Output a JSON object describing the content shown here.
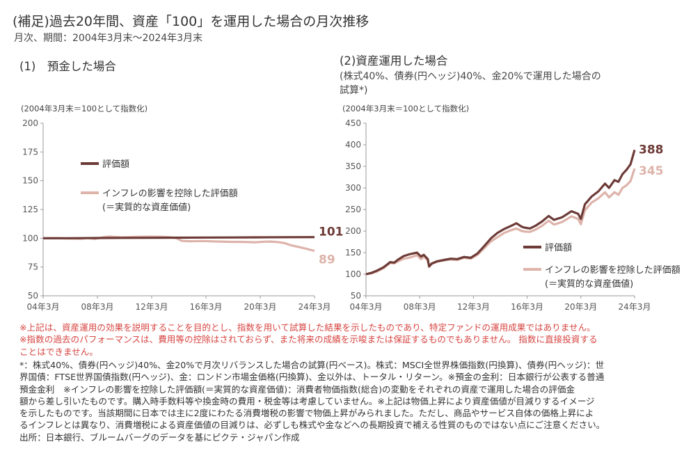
{
  "header": {
    "title": "(補足)過去20年間、資産「100」を運用した場合の月次推移",
    "subtitle": "月次、期間：2004年3月末～2024年3月末"
  },
  "colors": {
    "nominal": "#6d3b37",
    "real": "#ddb3aa",
    "axis": "#999999",
    "note_red": "#d64541"
  },
  "chart_data": [
    {
      "type": "line",
      "title": "(1)　預金した場合",
      "note": "(2004年3月末＝100として指数化)",
      "x_ticks": [
        "04年3月",
        "08年3月",
        "12年3月",
        "16年3月",
        "20年3月",
        "24年3月"
      ],
      "ylim": [
        50,
        200
      ],
      "y_ticks": [
        50,
        75,
        100,
        125,
        150,
        175,
        200
      ],
      "legend": [
        "評価額",
        "インフレの影響を控除した評価額",
        "(＝実質的な資産価値)"
      ],
      "end_labels": [
        "101",
        "89"
      ],
      "series": [
        {
          "name": "評価額",
          "x": [
            2004.2,
            2006,
            2008,
            2010,
            2012,
            2014,
            2016,
            2018,
            2020,
            2022,
            2024.2
          ],
          "values": [
            100,
            100,
            100.2,
            100.3,
            100.4,
            100.5,
            100.6,
            100.7,
            100.8,
            100.9,
            101
          ]
        },
        {
          "name": "インフレの影響を控除した評価額",
          "x": [
            2004.2,
            2005,
            2006,
            2007,
            2007.5,
            2008,
            2008.6,
            2009,
            2010,
            2011,
            2012,
            2013,
            2013.6,
            2014,
            2014.4,
            2015,
            2016,
            2017,
            2018,
            2019,
            2019.8,
            2020.5,
            2021,
            2021.5,
            2022,
            2022.5,
            2023,
            2023.5,
            2024.2
          ],
          "values": [
            100,
            100.2,
            99.8,
            99.6,
            100.2,
            99.4,
            100.8,
            101.5,
            100.8,
            101.2,
            101.4,
            101.3,
            100.8,
            100.2,
            97.8,
            97.4,
            97.6,
            97.2,
            96.9,
            96.8,
            96.5,
            97.0,
            97.1,
            96.7,
            95.8,
            93.8,
            92.5,
            91.2,
            89
          ]
        }
      ]
    },
    {
      "type": "line",
      "title": "(2)資産運用した場合",
      "subtitle_lines": [
        "(株式40%、債券(円ヘッジ)40%、金20%で運用した場合の",
        "試算*)"
      ],
      "note": "(2004年3月末＝100として指数化)",
      "x_ticks": [
        "04年3月",
        "08年3月",
        "12年3月",
        "16年3月",
        "20年3月",
        "24年3月"
      ],
      "ylim": [
        50,
        450
      ],
      "y_ticks": [
        50,
        100,
        150,
        200,
        250,
        300,
        350,
        400,
        450
      ],
      "legend": [
        "評価額",
        "インフレの影響を控除した評価額",
        "(＝実質的な資産価値)"
      ],
      "end_labels": [
        "388",
        "345"
      ],
      "series": [
        {
          "name": "評価額",
          "x": [
            2004.2,
            2004.6,
            2005,
            2005.5,
            2006,
            2006.3,
            2006.6,
            2007,
            2007.4,
            2007.7,
            2008,
            2008.3,
            2008.5,
            2008.8,
            2008.9,
            2009.1,
            2009.5,
            2010,
            2010.5,
            2011,
            2011.5,
            2012,
            2012.5,
            2013,
            2013.5,
            2014,
            2014.5,
            2015,
            2015.4,
            2015.8,
            2016,
            2016.4,
            2016.8,
            2017.3,
            2017.8,
            2018.2,
            2018.8,
            2019.5,
            2020,
            2020.2,
            2020.5,
            2021,
            2021.5,
            2022,
            2022.3,
            2022.7,
            2023,
            2023.3,
            2023.6,
            2023.9,
            2024.2
          ],
          "values": [
            100,
            103,
            108,
            116,
            128,
            127,
            134,
            142,
            146,
            148,
            150,
            141,
            145,
            135,
            118,
            125,
            130,
            133,
            136,
            135,
            140,
            138,
            148,
            165,
            183,
            196,
            205,
            212,
            218,
            210,
            208,
            206,
            212,
            222,
            235,
            226,
            232,
            246,
            240,
            228,
            262,
            280,
            292,
            310,
            300,
            318,
            314,
            332,
            342,
            355,
            388
          ]
        },
        {
          "name": "インフレの影響を控除した評価額",
          "x": [
            2004.2,
            2004.6,
            2005,
            2005.5,
            2006,
            2006.3,
            2006.6,
            2007,
            2007.4,
            2007.7,
            2008,
            2008.3,
            2008.5,
            2008.8,
            2008.9,
            2009.1,
            2009.5,
            2010,
            2010.5,
            2011,
            2011.5,
            2012,
            2012.5,
            2013,
            2013.5,
            2014,
            2014.5,
            2015,
            2015.4,
            2015.8,
            2016,
            2016.4,
            2016.8,
            2017.3,
            2017.8,
            2018.2,
            2018.8,
            2019.5,
            2020,
            2020.2,
            2020.5,
            2021,
            2021.5,
            2022,
            2022.3,
            2022.7,
            2023,
            2023.3,
            2023.6,
            2023.9,
            2024.2
          ],
          "values": [
            100,
            102,
            106,
            114,
            126,
            125,
            130,
            136,
            138,
            141,
            144,
            135,
            141,
            132,
            117,
            124,
            129,
            132,
            134,
            133,
            138,
            136,
            145,
            160,
            176,
            186,
            196,
            202,
            206,
            200,
            199,
            198,
            203,
            212,
            224,
            215,
            221,
            234,
            228,
            216,
            248,
            266,
            276,
            290,
            278,
            290,
            284,
            300,
            306,
            316,
            345
          ]
        }
      ]
    }
  ],
  "notes_red": [
    "※上記は、資産運用の効果を説明することを目的とし、指数を用いて試算した結果を示したものであり、特定ファンドの運用成果ではありません。",
    "※指数の過去のパフォーマンスは、費用等の控除はされておらず、また将来の成績を示唆または保証するものでもありません。 指数に直接投資する",
    "ことはできません。"
  ],
  "notes_black": [
    "*：株式40%、債券(円ヘッジ)40%、金20%で月次リバランスした場合の試算(円ベース)。株式：MSCI全世界株価指数(円換算)、債券(円ヘッジ)：世",
    "界国債：FTSE世界国債指数(円ヘッジ)、金：ロンドン市場金価格(円換算)、金以外は、トータル・リターン。※預金の金利：日本銀行が公表する普通",
    "預金金利　※インフレの影響を控除した評価額(＝実質的な資産価値)：消費者物価指数(総合)の変動をそれぞれの資産で運用した場合の評価金",
    "額から差し引いたものです。購入時手数料等や換金時の費用・税金等は考慮していません。※上記は物価上昇により資産価値が目減りするイメージ",
    "を示したものです。当該期間に日本では主に2度にわたる消費増税の影響で物価上昇がみられました。ただし、商品やサービス自体の価格上昇によ",
    "るインフレとは異なり、消費増税による資産価値の目減りは、必ずしも株式や金などへの長期投資で補える性質のものではない点にご注意ください。",
    "出所：日本銀行、ブルームバーグのデータを基にピクテ・ジャパン作成"
  ]
}
